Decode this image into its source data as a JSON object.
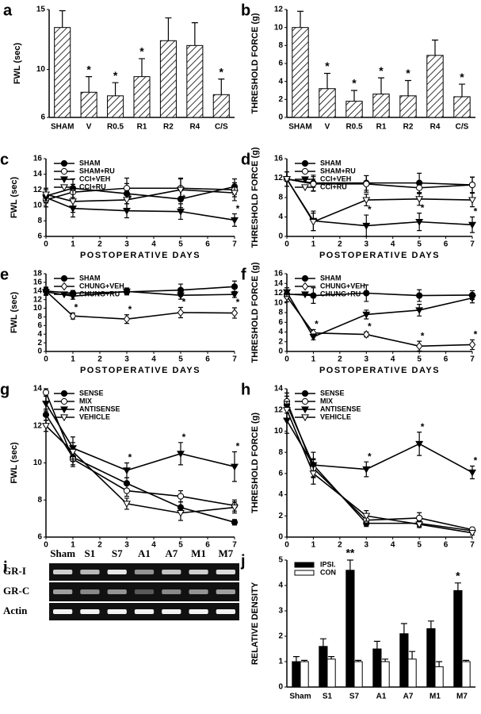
{
  "chart_data": [
    {
      "type": "bar",
      "panel": "a",
      "ylabel": "FWL (sec)",
      "categories": [
        "SHAM",
        "V",
        "R0.5",
        "R1",
        "R2",
        "R4",
        "C/S"
      ],
      "values": [
        13.5,
        8.1,
        7.8,
        9.4,
        12.4,
        12.0,
        7.9
      ],
      "errors": [
        1.4,
        1.3,
        1.1,
        1.5,
        1.9,
        1.9,
        1.3
      ],
      "significance": [
        null,
        "*",
        "*",
        "*",
        null,
        null,
        "*"
      ],
      "color": "#000000",
      "hatch": true,
      "ylim": [
        6,
        15
      ],
      "yticks": [
        6,
        10,
        15
      ],
      "grid": false
    },
    {
      "type": "bar",
      "panel": "b",
      "ylabel": "THRESHOLD FORCE (g)",
      "categories": [
        "SHAM",
        "V",
        "R0.5",
        "R1",
        "R2",
        "R4",
        "C/S"
      ],
      "values": [
        10.0,
        3.2,
        1.8,
        2.6,
        2.4,
        6.9,
        2.3
      ],
      "errors": [
        1.8,
        1.7,
        1.2,
        1.8,
        1.7,
        1.7,
        1.4
      ],
      "significance": [
        null,
        "*",
        "*",
        "*",
        "*",
        null,
        "*"
      ],
      "color": "#000000",
      "hatch": true,
      "ylim": [
        0,
        12
      ],
      "yticks": [
        0,
        2,
        4,
        6,
        8,
        10,
        12
      ],
      "grid": false
    },
    {
      "type": "line",
      "panel": "c",
      "xlabel": "POSTOPERATIVE DAYS",
      "ylabel": "FWL (sec)",
      "x": [
        0,
        1,
        3,
        5,
        7
      ],
      "xlim": [
        0,
        7
      ],
      "xticks": [
        0,
        1,
        2,
        3,
        4,
        5,
        6,
        7
      ],
      "ylim": [
        6,
        16
      ],
      "yticks": [
        6,
        8,
        10,
        12,
        14,
        16
      ],
      "grid": false,
      "legend": "upper left",
      "series": [
        {
          "name": "SHAM",
          "color": "#000000",
          "marker": "circle",
          "fill": "#000000",
          "values": [
            11.2,
            12.2,
            11.5,
            10.8,
            12.4
          ],
          "errors": [
            0.8,
            1.2,
            1.3,
            1.1,
            1.0
          ]
        },
        {
          "name": "SHAM+RU",
          "color": "#000000",
          "marker": "circle",
          "fill": "#ffffff",
          "values": [
            10.7,
            11.7,
            12.2,
            12.2,
            12.0
          ],
          "errors": [
            0.9,
            1.0,
            1.3,
            1.2,
            0.9
          ]
        },
        {
          "name": "CCI+VEH",
          "color": "#000000",
          "marker": "triangle",
          "fill": "#000000",
          "values": [
            11.0,
            9.6,
            9.3,
            9.2,
            8.1
          ],
          "errors": [
            0.7,
            1.1,
            0.9,
            1.0,
            0.8
          ],
          "significance": [
            null,
            null,
            "*",
            "*",
            "*"
          ]
        },
        {
          "name": "CCI+RU",
          "color": "#000000",
          "marker": "triangle",
          "fill": "#ffffff",
          "values": [
            11.4,
            10.5,
            10.7,
            12.0,
            11.6
          ],
          "errors": [
            0.8,
            1.4,
            1.2,
            1.5,
            1.0
          ]
        }
      ]
    },
    {
      "type": "line",
      "panel": "d",
      "xlabel": "POSTOPERATIVE DAYS",
      "ylabel": "THRESHOLD FORCE (g)",
      "x": [
        0,
        1,
        3,
        5,
        7
      ],
      "xlim": [
        0,
        7
      ],
      "xticks": [
        0,
        1,
        2,
        3,
        4,
        5,
        6,
        7
      ],
      "ylim": [
        0,
        16
      ],
      "yticks": [
        0,
        4,
        8,
        12,
        16
      ],
      "grid": false,
      "legend": "upper left",
      "series": [
        {
          "name": "SHAM",
          "color": "#000000",
          "marker": "circle",
          "fill": "#000000",
          "values": [
            11.8,
            11.0,
            11.0,
            11.0,
            10.6
          ],
          "errors": [
            1.5,
            1.6,
            1.5,
            2.0,
            1.6
          ]
        },
        {
          "name": "SHAM+RU",
          "color": "#000000",
          "marker": "circle",
          "fill": "#ffffff",
          "values": [
            11.8,
            10.8,
            10.8,
            10.0,
            10.6
          ],
          "errors": [
            1.5,
            1.5,
            1.7,
            1.2,
            1.6
          ]
        },
        {
          "name": "CCI+VEH",
          "color": "#000000",
          "marker": "triangle",
          "fill": "#000000",
          "values": [
            11.8,
            3.2,
            2.2,
            3.0,
            2.4
          ],
          "errors": [
            1.5,
            2.0,
            2.2,
            1.8,
            1.6
          ],
          "significance": [
            null,
            null,
            "*",
            "*",
            "*"
          ]
        },
        {
          "name": "CCI+RU",
          "color": "#000000",
          "marker": "triangle",
          "fill": "#ffffff",
          "values": [
            11.8,
            3.0,
            7.5,
            7.7,
            7.5
          ],
          "errors": [
            1.5,
            1.8,
            1.2,
            1.3,
            1.4
          ]
        }
      ]
    },
    {
      "type": "line",
      "panel": "e",
      "xlabel": "POSTOPERATIVE DAYS",
      "ylabel": "FWL (sec)",
      "x": [
        0,
        1,
        3,
        5,
        7
      ],
      "xlim": [
        0,
        7
      ],
      "xticks": [
        0,
        1,
        2,
        3,
        4,
        5,
        6,
        7
      ],
      "ylim": [
        0,
        18
      ],
      "yticks": [
        0,
        2,
        4,
        6,
        8,
        10,
        12,
        14,
        16,
        18
      ],
      "grid": false,
      "legend": "upper left",
      "series": [
        {
          "name": "SHAM",
          "color": "#000000",
          "marker": "circle",
          "fill": "#000000",
          "values": [
            14.0,
            13.5,
            13.8,
            14.2,
            15.0
          ],
          "errors": [
            0.8,
            0.6,
            0.7,
            1.4,
            1.3
          ]
        },
        {
          "name": "CHUNG+VEH",
          "color": "#000000",
          "marker": "diamond",
          "fill": "#ffffff",
          "values": [
            14.0,
            8.2,
            7.5,
            9.0,
            8.9
          ],
          "errors": [
            0.9,
            0.7,
            1.0,
            1.2,
            1.2
          ],
          "significance": [
            null,
            "*",
            "*",
            "*",
            "*"
          ]
        },
        {
          "name": "CHUNG+RU",
          "color": "#000000",
          "marker": "triangle",
          "fill": "#000000",
          "values": [
            13.8,
            12.8,
            13.9,
            13.0,
            13.2
          ],
          "errors": [
            0.8,
            0.7,
            0.8,
            0.9,
            0.7
          ]
        }
      ]
    },
    {
      "type": "line",
      "panel": "f",
      "xlabel": "POSTOPERATIVE DAYS",
      "ylabel": "THRESHOLD FORCE (g)",
      "x": [
        0,
        1,
        3,
        5,
        7
      ],
      "xlim": [
        0,
        7
      ],
      "xticks": [
        0,
        1,
        2,
        3,
        4,
        5,
        6,
        7
      ],
      "ylim": [
        0,
        16
      ],
      "yticks": [
        0,
        2,
        4,
        6,
        8,
        10,
        12,
        14,
        16
      ],
      "grid": false,
      "legend": "upper left",
      "series": [
        {
          "name": "SHAM",
          "color": "#000000",
          "marker": "circle",
          "fill": "#000000",
          "values": [
            11.8,
            11.5,
            12.0,
            11.5,
            11.6
          ],
          "errors": [
            0.8,
            1.6,
            1.7,
            1.2,
            0.9
          ]
        },
        {
          "name": "CHUNG+VEH",
          "color": "#000000",
          "marker": "diamond",
          "fill": "#ffffff",
          "values": [
            11.3,
            3.8,
            3.5,
            1.1,
            1.4
          ],
          "errors": [
            1.1,
            0.7,
            0.5,
            1.0,
            1.0
          ],
          "significance": [
            null,
            "*",
            "*",
            "*",
            "*"
          ]
        },
        {
          "name": "CHUNG+RU",
          "color": "#000000",
          "marker": "triangle",
          "fill": "#000000",
          "values": [
            12.2,
            3.0,
            7.6,
            8.5,
            11.0
          ],
          "errors": [
            0.9,
            0.6,
            0.9,
            1.2,
            1.0
          ]
        }
      ]
    },
    {
      "type": "line",
      "panel": "g",
      "ylabel": "FWL (sec)",
      "x": [
        0,
        1,
        3,
        5,
        7
      ],
      "xlim": [
        0,
        7
      ],
      "xticks": [
        0,
        1,
        2,
        3,
        4,
        5,
        6,
        7
      ],
      "ylim": [
        6,
        14
      ],
      "yticks": [
        6,
        8,
        10,
        12,
        14
      ],
      "grid": false,
      "legend": "upper left",
      "series": [
        {
          "name": "SENSE",
          "color": "#000000",
          "marker": "circle",
          "fill": "#000000",
          "values": [
            12.6,
            10.3,
            8.9,
            7.6,
            6.8
          ],
          "errors": [
            0.3,
            0.4,
            0.3,
            0.3,
            0.15
          ]
        },
        {
          "name": "MIX",
          "color": "#000000",
          "marker": "circle",
          "fill": "#ffffff",
          "values": [
            13.8,
            10.2,
            8.5,
            8.2,
            7.7
          ],
          "errors": [
            0.2,
            0.4,
            0.3,
            0.3,
            0.3
          ]
        },
        {
          "name": "ANTISENSE",
          "color": "#000000",
          "marker": "triangle",
          "fill": "#000000",
          "values": [
            13.2,
            10.8,
            9.6,
            10.5,
            9.8
          ],
          "errors": [
            0.4,
            0.6,
            0.4,
            0.6,
            0.8
          ],
          "significance": [
            null,
            null,
            "*",
            "*",
            "*"
          ]
        },
        {
          "name": "VEHICLE",
          "color": "#000000",
          "marker": "triangle",
          "fill": "#ffffff",
          "values": [
            12.0,
            10.6,
            7.8,
            7.3,
            7.6
          ],
          "errors": [
            0.3,
            0.5,
            0.3,
            0.4,
            0.3
          ]
        }
      ]
    },
    {
      "type": "line",
      "panel": "h",
      "ylabel": "THRESHOLD FORCE (g)",
      "x": [
        0,
        1,
        3,
        5,
        7
      ],
      "xlim": [
        0,
        7
      ],
      "xticks": [
        0,
        1,
        2,
        3,
        4,
        5,
        6,
        7
      ],
      "ylim": [
        0,
        14
      ],
      "yticks": [
        0,
        2,
        4,
        6,
        8,
        10,
        12,
        14
      ],
      "grid": false,
      "legend": "upper left",
      "series": [
        {
          "name": "SENSE",
          "color": "#000000",
          "marker": "circle",
          "fill": "#000000",
          "values": [
            12.5,
            6.8,
            1.3,
            1.3,
            0.6
          ],
          "errors": [
            0.8,
            0.6,
            0.3,
            0.3,
            0.2
          ]
        },
        {
          "name": "MIX",
          "color": "#000000",
          "marker": "circle",
          "fill": "#ffffff",
          "values": [
            12.8,
            6.5,
            1.6,
            1.8,
            0.7
          ],
          "errors": [
            0.8,
            0.8,
            0.5,
            0.5,
            0.2
          ]
        },
        {
          "name": "ANTISENSE",
          "color": "#000000",
          "marker": "triangle",
          "fill": "#000000",
          "values": [
            11.0,
            6.8,
            6.4,
            8.8,
            6.1
          ],
          "errors": [
            1.2,
            1.2,
            0.7,
            1.1,
            0.6
          ],
          "significance": [
            null,
            null,
            "*",
            "*",
            "*"
          ]
        },
        {
          "name": "VEHICLE",
          "color": "#000000",
          "marker": "triangle",
          "fill": "#ffffff",
          "values": [
            12.0,
            6.0,
            2.0,
            1.2,
            0.4
          ],
          "errors": [
            0.8,
            1.0,
            0.5,
            0.3,
            0.2
          ]
        }
      ]
    },
    {
      "type": "bar",
      "panel": "j",
      "ylabel": "RELATIVE DENSITY",
      "categories": [
        "Sham",
        "S1",
        "S7",
        "A1",
        "A7",
        "M1",
        "M7"
      ],
      "ylim": [
        0,
        5
      ],
      "yticks": [
        0,
        1,
        2,
        3,
        4,
        5
      ],
      "grid": false,
      "legend": "upper left",
      "series": [
        {
          "name": "IPSI.",
          "color": "#000000",
          "values": [
            1.0,
            1.6,
            4.6,
            1.5,
            2.1,
            2.3,
            3.8
          ],
          "errors": [
            0.2,
            0.3,
            0.4,
            0.3,
            0.4,
            0.3,
            0.3
          ],
          "significance": [
            null,
            null,
            "**",
            null,
            null,
            null,
            "*"
          ]
        },
        {
          "name": "CON",
          "color": "#ffffff",
          "values": [
            1.0,
            1.1,
            1.0,
            1.0,
            1.1,
            0.8,
            1.0
          ],
          "errors": [
            0.05,
            0.1,
            0.05,
            0.1,
            0.3,
            0.2,
            0.05
          ]
        }
      ]
    }
  ],
  "gel": {
    "panel": "i",
    "lanes": [
      "Sham",
      "S1",
      "S7",
      "A1",
      "A7",
      "M1",
      "M7"
    ],
    "rows": [
      "GR-I",
      "GR-C",
      "Actin"
    ]
  }
}
